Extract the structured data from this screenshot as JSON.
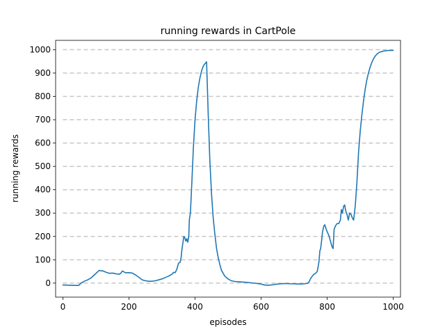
{
  "chart_data": {
    "type": "line",
    "title": "running rewards in CartPole",
    "xlabel": "episodes",
    "ylabel": "running rewards",
    "xlim": [
      -22,
      1022
    ],
    "ylim": [
      -60,
      1040
    ],
    "xticks": [
      0,
      200,
      400,
      600,
      800,
      1000
    ],
    "yticks": [
      0,
      100,
      200,
      300,
      400,
      500,
      600,
      700,
      800,
      900,
      1000
    ],
    "grid": "horizontal dashed at y ticks",
    "legend": "none",
    "series": [
      {
        "color": "#1f77b4",
        "points": [
          [
            0,
            -8
          ],
          [
            20,
            -9
          ],
          [
            40,
            -10
          ],
          [
            48,
            -10
          ],
          [
            55,
            0
          ],
          [
            65,
            8
          ],
          [
            75,
            14
          ],
          [
            85,
            22
          ],
          [
            95,
            35
          ],
          [
            105,
            48
          ],
          [
            110,
            55
          ],
          [
            115,
            52
          ],
          [
            120,
            53
          ],
          [
            130,
            47
          ],
          [
            140,
            42
          ],
          [
            150,
            43
          ],
          [
            160,
            40
          ],
          [
            170,
            38
          ],
          [
            175,
            42
          ],
          [
            180,
            52
          ],
          [
            185,
            48
          ],
          [
            190,
            44
          ],
          [
            200,
            45
          ],
          [
            210,
            43
          ],
          [
            220,
            35
          ],
          [
            230,
            25
          ],
          [
            240,
            14
          ],
          [
            250,
            10
          ],
          [
            260,
            8
          ],
          [
            270,
            8
          ],
          [
            280,
            10
          ],
          [
            290,
            14
          ],
          [
            300,
            18
          ],
          [
            310,
            24
          ],
          [
            320,
            30
          ],
          [
            330,
            38
          ],
          [
            335,
            46
          ],
          [
            340,
            45
          ],
          [
            345,
            60
          ],
          [
            350,
            85
          ],
          [
            355,
            90
          ],
          [
            358,
            110
          ],
          [
            360,
            140
          ],
          [
            363,
            170
          ],
          [
            366,
            200
          ],
          [
            369,
            195
          ],
          [
            372,
            180
          ],
          [
            375,
            190
          ],
          [
            378,
            175
          ],
          [
            381,
            200
          ],
          [
            383,
            275
          ],
          [
            386,
            300
          ],
          [
            390,
            420
          ],
          [
            395,
            580
          ],
          [
            400,
            700
          ],
          [
            405,
            780
          ],
          [
            410,
            840
          ],
          [
            415,
            880
          ],
          [
            420,
            910
          ],
          [
            425,
            930
          ],
          [
            430,
            940
          ],
          [
            435,
            948
          ],
          [
            440,
            720
          ],
          [
            445,
            520
          ],
          [
            450,
            380
          ],
          [
            455,
            280
          ],
          [
            460,
            210
          ],
          [
            465,
            150
          ],
          [
            470,
            110
          ],
          [
            475,
            80
          ],
          [
            480,
            55
          ],
          [
            490,
            30
          ],
          [
            500,
            18
          ],
          [
            510,
            10
          ],
          [
            520,
            7
          ],
          [
            530,
            6
          ],
          [
            540,
            5
          ],
          [
            550,
            4
          ],
          [
            560,
            3
          ],
          [
            570,
            1
          ],
          [
            580,
            0
          ],
          [
            590,
            -2
          ],
          [
            600,
            -4
          ],
          [
            610,
            -8
          ],
          [
            620,
            -9
          ],
          [
            630,
            -8
          ],
          [
            640,
            -6
          ],
          [
            650,
            -4
          ],
          [
            660,
            -3
          ],
          [
            670,
            -2
          ],
          [
            680,
            -2
          ],
          [
            690,
            -3
          ],
          [
            700,
            -3
          ],
          [
            710,
            -4
          ],
          [
            720,
            -4
          ],
          [
            730,
            -3
          ],
          [
            740,
            -1
          ],
          [
            745,
            5
          ],
          [
            750,
            20
          ],
          [
            755,
            30
          ],
          [
            760,
            38
          ],
          [
            765,
            42
          ],
          [
            770,
            50
          ],
          [
            775,
            90
          ],
          [
            778,
            140
          ],
          [
            780,
            145
          ],
          [
            783,
            180
          ],
          [
            786,
            220
          ],
          [
            790,
            245
          ],
          [
            793,
            250
          ],
          [
            796,
            235
          ],
          [
            800,
            220
          ],
          [
            805,
            205
          ],
          [
            810,
            180
          ],
          [
            815,
            155
          ],
          [
            818,
            148
          ],
          [
            821,
            230
          ],
          [
            825,
            245
          ],
          [
            830,
            255
          ],
          [
            835,
            255
          ],
          [
            840,
            270
          ],
          [
            843,
            315
          ],
          [
            846,
            300
          ],
          [
            850,
            330
          ],
          [
            853,
            335
          ],
          [
            856,
            310
          ],
          [
            860,
            295
          ],
          [
            864,
            270
          ],
          [
            868,
            300
          ],
          [
            872,
            295
          ],
          [
            876,
            280
          ],
          [
            880,
            270
          ],
          [
            885,
            330
          ],
          [
            890,
            430
          ],
          [
            895,
            560
          ],
          [
            900,
            650
          ],
          [
            905,
            720
          ],
          [
            910,
            780
          ],
          [
            915,
            830
          ],
          [
            920,
            870
          ],
          [
            925,
            900
          ],
          [
            930,
            925
          ],
          [
            935,
            945
          ],
          [
            940,
            960
          ],
          [
            945,
            972
          ],
          [
            950,
            980
          ],
          [
            955,
            986
          ],
          [
            960,
            990
          ],
          [
            970,
            994
          ],
          [
            980,
            996
          ],
          [
            990,
            997
          ],
          [
            1000,
            997
          ]
        ]
      }
    ]
  }
}
